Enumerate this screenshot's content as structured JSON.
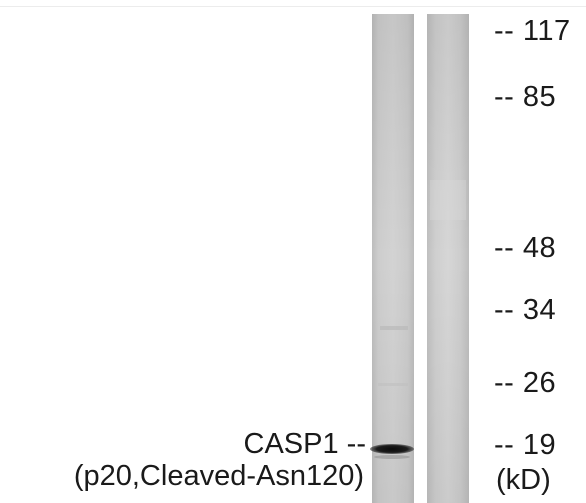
{
  "blot": {
    "lanes": [
      {
        "name": "sample-lane"
      },
      {
        "name": "control-lane"
      }
    ],
    "background_color": "#c9c9c9",
    "band_color": "#101010"
  },
  "markers": [
    {
      "label": "-- 117",
      "kd": 117
    },
    {
      "label": "-- 85",
      "kd": 85
    },
    {
      "label": "-- 48",
      "kd": 48
    },
    {
      "label": "-- 34",
      "kd": 34
    },
    {
      "label": "-- 26",
      "kd": 26
    },
    {
      "label": "-- 19",
      "kd": 19
    }
  ],
  "unit_label": "(kD)",
  "band": {
    "name_line": "CASP1 --",
    "detail_line": "(p20,Cleaved-Asn120)"
  }
}
